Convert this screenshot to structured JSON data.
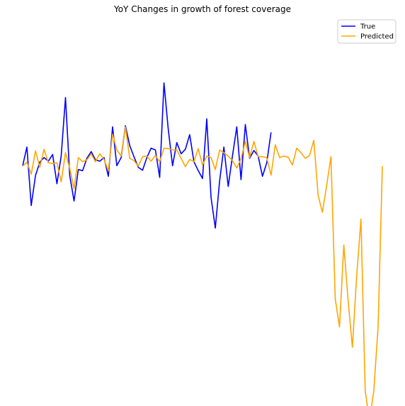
{
  "chart_data": {
    "type": "line",
    "title": "YoY Changes in growth of forest coverage",
    "xlabel": "",
    "ylabel": "",
    "axes_visible": false,
    "grid": false,
    "legend_position": "top-right",
    "x_true": [
      0,
      1,
      2,
      3,
      4,
      5,
      6,
      7,
      8,
      9,
      10,
      11,
      12,
      13,
      14,
      15,
      16,
      17,
      18,
      19,
      20,
      21,
      22,
      23,
      24,
      25,
      26,
      27,
      28,
      29,
      30,
      31,
      32,
      33,
      34,
      35,
      36,
      37,
      38,
      39,
      40,
      41,
      42,
      43,
      44,
      45,
      46,
      47,
      48,
      49,
      50,
      51,
      52,
      53,
      54,
      55,
      56,
      57,
      58,
      59,
      60
    ],
    "x_pred": [
      0,
      1,
      2,
      3,
      4,
      5,
      6,
      7,
      8,
      9,
      10,
      11,
      12,
      13,
      14,
      15,
      16,
      17,
      18,
      19,
      20,
      21,
      22,
      23,
      24,
      25,
      26,
      27,
      28,
      29,
      30,
      31,
      32,
      33,
      34,
      35,
      36,
      37,
      38,
      39,
      40,
      41,
      42,
      43,
      44,
      45,
      46,
      47,
      48,
      49,
      50,
      51,
      52,
      53,
      54,
      55,
      56,
      57,
      58,
      59,
      60,
      61,
      62,
      63,
      64,
      65,
      66,
      67,
      68,
      69,
      70,
      71,
      72,
      73,
      74,
      75,
      76,
      77,
      78,
      79,
      80,
      81,
      82,
      83,
      84
    ],
    "ylim": [
      -10,
      6.6
    ],
    "series": [
      {
        "name": "True",
        "color": "#0000ff",
        "values": [
          0.02,
          0.85,
          -1.75,
          -0.42,
          0.18,
          0.38,
          0.22,
          0.52,
          -0.78,
          0.45,
          3.05,
          -0.42,
          -1.55,
          -0.15,
          -0.2,
          0.35,
          0.65,
          0.28,
          0.22,
          0.38,
          -0.45,
          1.75,
          0.02,
          0.38,
          1.8,
          0.92,
          0.42,
          -0.05,
          -0.18,
          0.38,
          0.8,
          0.72,
          -0.5,
          3.7,
          1.65,
          0.02,
          1.05,
          0.55,
          0.75,
          1.4,
          0.2,
          -0.2,
          -0.55,
          2.1,
          -1.4,
          -2.75,
          -0.65,
          0.85,
          -0.9,
          0.45,
          1.75,
          -0.6,
          1.85,
          0.35,
          0.7,
          0.45,
          -0.45,
          0.15,
          1.5,
          null,
          null
        ]
      },
      {
        "name": "Predicted",
        "color": "#ffa500",
        "values": [
          0.0,
          0.18,
          -0.35,
          0.68,
          -0.05,
          0.75,
          0.15,
          0.12,
          0.15,
          -0.7,
          0.6,
          -0.1,
          -1.0,
          0.38,
          0.2,
          0.28,
          0.55,
          0.2,
          0.55,
          0.3,
          -0.2,
          1.42,
          0.72,
          0.45,
          1.75,
          0.35,
          0.25,
          0.0,
          0.42,
          0.45,
          0.22,
          0.48,
          0.2,
          0.8,
          0.78,
          0.72,
          0.72,
          0.35,
          -0.02,
          0.3,
          0.2,
          0.78,
          0.05,
          0.45,
          0.38,
          -0.15,
          0.72,
          0.6,
          0.45,
          0.25,
          -0.08,
          0.32,
          1.1,
          0.38,
          1.1,
          0.42,
          0.42,
          0.38,
          -0.4,
          0.95,
          0.38,
          0.45,
          0.4,
          0.05,
          0.8,
          0.6,
          0.35,
          0.48,
          1.15,
          -1.3,
          -2.05,
          -0.85,
          0.42,
          -5.9,
          -7.15,
          -3.5,
          -5.95,
          -8.05,
          -4.9,
          -2.35,
          -10.0,
          -11.3,
          -10.0,
          -7.15,
          0.0
        ]
      }
    ]
  }
}
